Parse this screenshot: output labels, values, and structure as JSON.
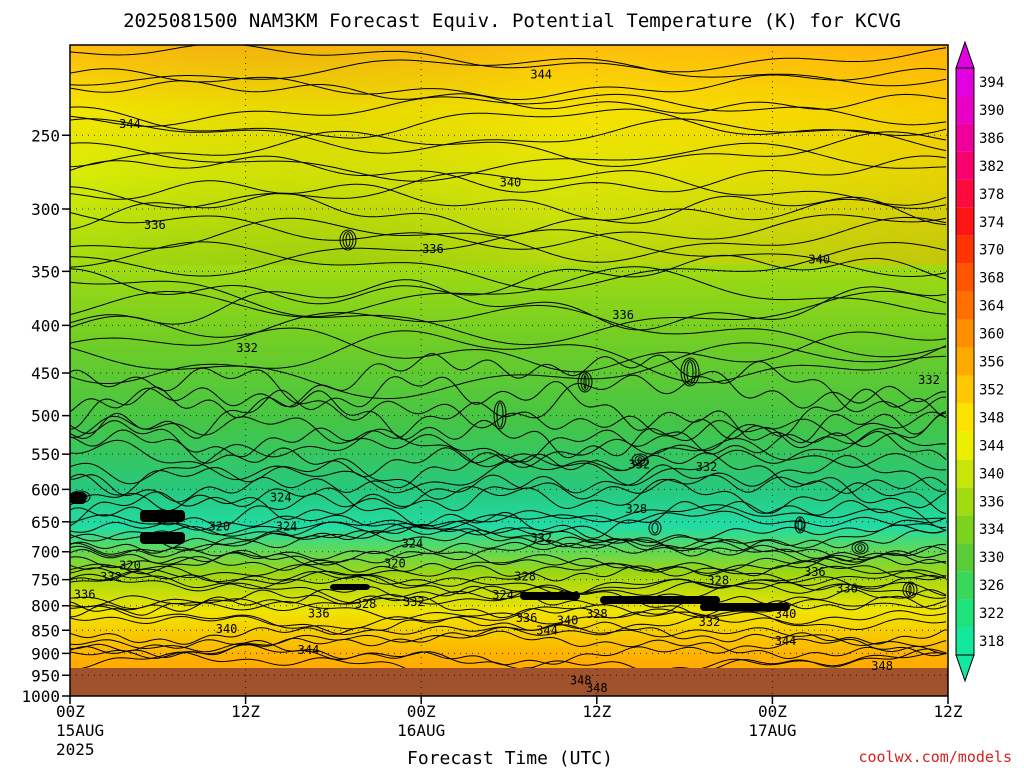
{
  "chart_data": {
    "type": "heatmap",
    "title": "2025081500 NAM3KM Forecast Equiv. Potential Temperature (K) for KCVG",
    "xlabel": "Forecast Time (UTC)",
    "ylabel": "",
    "credit": "coolwx.com/models",
    "x_range_hours": [
      0,
      60
    ],
    "x_ticks": [
      {
        "hour": 0,
        "l1": "00Z",
        "l2": "15AUG",
        "l3": "2025"
      },
      {
        "hour": 12,
        "l1": "12Z",
        "l2": "",
        "l3": ""
      },
      {
        "hour": 24,
        "l1": "00Z",
        "l2": "16AUG",
        "l3": ""
      },
      {
        "hour": 36,
        "l1": "12Z",
        "l2": "",
        "l3": ""
      },
      {
        "hour": 48,
        "l1": "00Z",
        "l2": "17AUG",
        "l3": ""
      },
      {
        "hour": 60,
        "l1": "12Z",
        "l2": "",
        "l3": ""
      }
    ],
    "y_scale": "log-pressure",
    "y_range_hpa": [
      1000,
      200
    ],
    "y_ticks": [
      1000,
      950,
      900,
      850,
      800,
      750,
      700,
      650,
      600,
      550,
      500,
      450,
      400,
      350,
      300,
      250
    ],
    "grid": true,
    "colorbar_labels": [
      318,
      322,
      326,
      330,
      334,
      336,
      340,
      344,
      348,
      352,
      356,
      360,
      364,
      368,
      370,
      374,
      378,
      382,
      386,
      390,
      394
    ],
    "colorbar_colors": [
      "#14e89e",
      "#1fe27a",
      "#3ad85a",
      "#5acc37",
      "#7cd31d",
      "#a2dc10",
      "#c8e60a",
      "#ecf000",
      "#ffe300",
      "#ffc800",
      "#ffaa00",
      "#ff8e00",
      "#ff7000",
      "#ff5400",
      "#ff3400",
      "#ff1414",
      "#ff0a3c",
      "#f8006e",
      "#f0009a",
      "#e800c4",
      "#e000e0"
    ],
    "contour_labels": [
      {
        "v": "344",
        "t": 32.2,
        "p": 215
      },
      {
        "v": "344",
        "t": 4.1,
        "p": 243
      },
      {
        "v": "340",
        "t": 30.1,
        "p": 281
      },
      {
        "v": "336",
        "t": 5.8,
        "p": 312
      },
      {
        "v": "336",
        "t": 24.8,
        "p": 331
      },
      {
        "v": "340",
        "t": 51.2,
        "p": 340
      },
      {
        "v": "336",
        "t": 37.8,
        "p": 390
      },
      {
        "v": "332",
        "t": 12.1,
        "p": 423
      },
      {
        "v": "332",
        "t": 58.7,
        "p": 458
      },
      {
        "v": "332",
        "t": 38.9,
        "p": 564
      },
      {
        "v": "332",
        "t": 43.5,
        "p": 568
      },
      {
        "v": "324",
        "t": 14.4,
        "p": 612
      },
      {
        "v": "328",
        "t": 38.7,
        "p": 630
      },
      {
        "v": "320",
        "t": 10.2,
        "p": 658
      },
      {
        "v": "324",
        "t": 14.8,
        "p": 658
      },
      {
        "v": "332",
        "t": 32.2,
        "p": 677
      },
      {
        "v": "324",
        "t": 23.4,
        "p": 686
      },
      {
        "v": "320",
        "t": 22.2,
        "p": 721
      },
      {
        "v": "320",
        "t": 4.1,
        "p": 724
      },
      {
        "v": "336",
        "t": 50.9,
        "p": 736
      },
      {
        "v": "332",
        "t": 2.8,
        "p": 745
      },
      {
        "v": "328",
        "t": 31.1,
        "p": 744
      },
      {
        "v": "328",
        "t": 44.3,
        "p": 752
      },
      {
        "v": "336",
        "t": 53.1,
        "p": 767
      },
      {
        "v": "336",
        "t": 1.0,
        "p": 778
      },
      {
        "v": "324",
        "t": 29.6,
        "p": 779
      },
      {
        "v": "320",
        "t": 34.1,
        "p": 781
      },
      {
        "v": "332",
        "t": 23.5,
        "p": 793
      },
      {
        "v": "328",
        "t": 20.2,
        "p": 797
      },
      {
        "v": "336",
        "t": 17.0,
        "p": 815
      },
      {
        "v": "328",
        "t": 36.0,
        "p": 817
      },
      {
        "v": "340",
        "t": 48.9,
        "p": 817
      },
      {
        "v": "336",
        "t": 31.2,
        "p": 825
      },
      {
        "v": "340",
        "t": 34.0,
        "p": 830
      },
      {
        "v": "332",
        "t": 43.7,
        "p": 833
      },
      {
        "v": "340",
        "t": 10.7,
        "p": 847
      },
      {
        "v": "344",
        "t": 32.6,
        "p": 850
      },
      {
        "v": "344",
        "t": 48.9,
        "p": 873
      },
      {
        "v": "344",
        "t": 16.3,
        "p": 893
      },
      {
        "v": "348",
        "t": 55.5,
        "p": 929
      },
      {
        "v": "348",
        "t": 34.9,
        "p": 962
      },
      {
        "v": "348",
        "t": 36.0,
        "p": 981
      }
    ]
  }
}
